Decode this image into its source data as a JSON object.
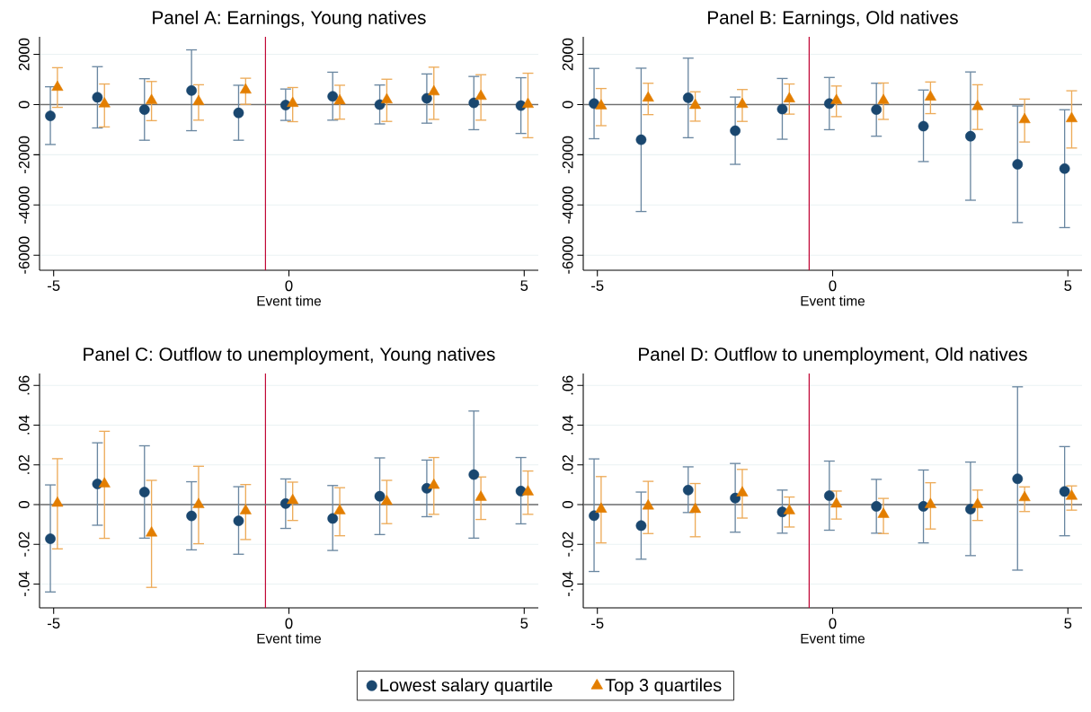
{
  "chart_data": [
    {
      "type": "scatter",
      "title": "Panel A: Earnings, Young natives",
      "xlabel": "Event time",
      "xlim": [
        -5.3,
        5.3
      ],
      "xticks": [
        -5,
        0,
        5
      ],
      "ylim": [
        -6600,
        2700
      ],
      "yticks": [
        -6000,
        -4000,
        -2000,
        0,
        2000
      ],
      "grid": "y",
      "ref_lines": [
        {
          "axis": "x",
          "value": -0.5,
          "color": "#c10534"
        },
        {
          "axis": "y",
          "value": 0,
          "color": "#6e6e6e"
        }
      ],
      "series": [
        {
          "color": "#1a476f",
          "marker": "circle",
          "x": [
            -5.07,
            -4.07,
            -3.07,
            -2.07,
            -1.07,
            -0.07,
            0.93,
            1.93,
            2.93,
            3.93,
            4.93
          ],
          "values": [
            -450,
            290,
            -200,
            560,
            -330,
            -20,
            330,
            0,
            250,
            70,
            -40
          ],
          "errors": [
            [
              -1590,
              710
            ],
            [
              -930,
              1510
            ],
            [
              -1420,
              1030
            ],
            [
              -1040,
              2180
            ],
            [
              -1420,
              770
            ],
            [
              -630,
              620
            ],
            [
              -620,
              1290
            ],
            [
              -770,
              780
            ],
            [
              -740,
              1220
            ],
            [
              -1000,
              1120
            ],
            [
              -1150,
              1070
            ]
          ]
        },
        {
          "color": "#e37e00",
          "marker": "triangle",
          "x": [
            -4.92,
            -3.92,
            -2.92,
            -1.92,
            -0.92,
            0.08,
            1.08,
            2.08,
            3.08,
            4.08,
            5.08
          ],
          "values": [
            690,
            30,
            160,
            120,
            580,
            50,
            150,
            190,
            510,
            330,
            10
          ],
          "errors": [
            [
              -110,
              1470
            ],
            [
              -890,
              820
            ],
            [
              -640,
              920
            ],
            [
              -620,
              790
            ],
            [
              10,
              1050
            ],
            [
              -680,
              680
            ],
            [
              -580,
              770
            ],
            [
              -670,
              1010
            ],
            [
              -590,
              1490
            ],
            [
              -620,
              1190
            ],
            [
              -1320,
              1250
            ]
          ]
        }
      ]
    },
    {
      "type": "scatter",
      "title": "Panel B: Earnings, Old natives",
      "xlabel": "Event time",
      "xlim": [
        -5.3,
        5.3
      ],
      "xticks": [
        -5,
        0,
        5
      ],
      "ylim": [
        -6600,
        2700
      ],
      "yticks": [
        -6000,
        -4000,
        -2000,
        0,
        2000
      ],
      "grid": "y",
      "ref_lines": [
        {
          "axis": "x",
          "value": -0.5,
          "color": "#c10534"
        },
        {
          "axis": "y",
          "value": 0,
          "color": "#6e6e6e"
        }
      ],
      "series": [
        {
          "color": "#1a476f",
          "marker": "circle",
          "x": [
            -5.07,
            -4.07,
            -3.07,
            -2.07,
            -1.07,
            -0.07,
            0.93,
            1.93,
            2.93,
            3.93,
            4.93
          ],
          "values": [
            40,
            -1400,
            270,
            -1040,
            -180,
            40,
            -200,
            -860,
            -1260,
            -2380,
            -2550
          ],
          "errors": [
            [
              -1360,
              1440
            ],
            [
              -4260,
              1450
            ],
            [
              -1320,
              1850
            ],
            [
              -2380,
              300
            ],
            [
              -1380,
              1040
            ],
            [
              -1000,
              1080
            ],
            [
              -1260,
              850
            ],
            [
              -2270,
              580
            ],
            [
              -3810,
              1300
            ],
            [
              -4700,
              -55
            ],
            [
              -4900,
              -205
            ]
          ]
        },
        {
          "color": "#e37e00",
          "marker": "triangle",
          "x": [
            -4.92,
            -3.92,
            -2.92,
            -1.92,
            -0.92,
            0.08,
            1.08,
            2.08,
            3.08,
            4.08,
            5.08
          ],
          "values": [
            -50,
            260,
            -30,
            10,
            230,
            160,
            160,
            300,
            -80,
            -600,
            -560
          ],
          "errors": [
            [
              -840,
              640
            ],
            [
              -400,
              850
            ],
            [
              -660,
              510
            ],
            [
              -670,
              600
            ],
            [
              -380,
              820
            ],
            [
              -480,
              740
            ],
            [
              -590,
              860
            ],
            [
              -360,
              900
            ],
            [
              -990,
              790
            ],
            [
              -1490,
              220
            ],
            [
              -1730,
              550
            ]
          ]
        }
      ]
    },
    {
      "type": "scatter",
      "title": "Panel C: Outflow to unemployment, Young natives",
      "xlabel": "Event time",
      "xlim": [
        -5.3,
        5.3
      ],
      "xticks": [
        -5,
        0,
        5
      ],
      "ylim": [
        -0.052,
        0.066
      ],
      "yticks": [
        {
          "value": -0.04,
          "label": "-.04"
        },
        {
          "value": -0.02,
          "label": "-.02"
        },
        0,
        {
          "value": 0.02,
          "label": ".02"
        },
        {
          "value": 0.04,
          "label": ".04"
        },
        {
          "value": 0.06,
          "label": ".06"
        }
      ],
      "grid": "y",
      "legend": "bottom",
      "ref_lines": [
        {
          "axis": "x",
          "value": -0.5,
          "color": "#c10534"
        },
        {
          "axis": "y",
          "value": 0,
          "color": "#6e6e6e"
        }
      ],
      "series": [
        {
          "name": "Lowest salary quartile",
          "color": "#1a476f",
          "marker": "circle",
          "x": [
            -5.07,
            -4.07,
            -3.07,
            -2.07,
            -1.07,
            -0.07,
            0.93,
            1.93,
            2.93,
            3.93,
            4.93
          ],
          "values": [
            -0.0172,
            0.0104,
            0.0063,
            -0.0057,
            -0.0082,
            0.0005,
            -0.007,
            0.0042,
            0.0082,
            0.0151,
            0.0068
          ],
          "errors": [
            [
              -0.044,
              0.0099
            ],
            [
              -0.0104,
              0.0311
            ],
            [
              -0.0169,
              0.0296
            ],
            [
              -0.0228,
              0.0115
            ],
            [
              -0.025,
              0.009
            ],
            [
              -0.012,
              0.0129
            ],
            [
              -0.0231,
              0.0096
            ],
            [
              -0.0151,
              0.0235
            ],
            [
              -0.0061,
              0.0224
            ],
            [
              -0.0169,
              0.0471
            ],
            [
              -0.0097,
              0.0237
            ]
          ]
        },
        {
          "name": "Top 3 quartiles",
          "color": "#e37e00",
          "marker": "triangle",
          "x": [
            -4.92,
            -3.92,
            -2.92,
            -1.92,
            -0.92,
            0.08,
            1.08,
            2.08,
            3.08,
            4.08,
            5.08
          ],
          "values": [
            0.0007,
            0.0104,
            -0.0143,
            0,
            -0.0031,
            0.0021,
            -0.0031,
            0.0016,
            0.0097,
            0.0037,
            0.0064
          ],
          "errors": [
            [
              -0.0223,
              0.0231
            ],
            [
              -0.017,
              0.0369
            ],
            [
              -0.0417,
              0.0122
            ],
            [
              -0.0197,
              0.0193
            ],
            [
              -0.0176,
              0.0101
            ],
            [
              -0.008,
              0.0113
            ],
            [
              -0.0157,
              0.0085
            ],
            [
              -0.0096,
              0.0122
            ],
            [
              -0.0049,
              0.0237
            ],
            [
              -0.0075,
              0.0139
            ],
            [
              -0.0049,
              0.0169
            ]
          ]
        }
      ]
    },
    {
      "type": "scatter",
      "title": "Panel D: Outflow to unemployment, Old natives",
      "xlabel": "Event time",
      "xlim": [
        -5.3,
        5.3
      ],
      "xticks": [
        -5,
        0,
        5
      ],
      "ylim": [
        -0.052,
        0.066
      ],
      "yticks": [
        {
          "value": -0.04,
          "label": "-.04"
        },
        {
          "value": -0.02,
          "label": "-.02"
        },
        0,
        {
          "value": 0.02,
          "label": ".02"
        },
        {
          "value": 0.04,
          "label": ".04"
        },
        {
          "value": 0.06,
          "label": ".06"
        }
      ],
      "grid": "y",
      "ref_lines": [
        {
          "axis": "x",
          "value": -0.5,
          "color": "#c10534"
        },
        {
          "axis": "y",
          "value": 0,
          "color": "#6e6e6e"
        }
      ],
      "series": [
        {
          "color": "#1a476f",
          "marker": "circle",
          "x": [
            -5.07,
            -4.07,
            -3.07,
            -2.07,
            -1.07,
            -0.07,
            0.93,
            1.93,
            2.93,
            3.93,
            4.93
          ],
          "values": [
            -0.0056,
            -0.0106,
            0.0073,
            0.0033,
            -0.0037,
            0.0045,
            -0.0009,
            -0.0009,
            -0.0023,
            0.013,
            0.0066
          ],
          "errors": [
            [
              -0.0337,
              0.023
            ],
            [
              -0.0275,
              0.0063
            ],
            [
              -0.004,
              0.019
            ],
            [
              -0.0139,
              0.0207
            ],
            [
              -0.0144,
              0.0073
            ],
            [
              -0.0129,
              0.0219
            ],
            [
              -0.0144,
              0.0127
            ],
            [
              -0.0193,
              0.0174
            ],
            [
              -0.0257,
              0.0214
            ],
            [
              -0.033,
              0.0593
            ],
            [
              -0.0157,
              0.0292
            ]
          ]
        },
        {
          "color": "#e37e00",
          "marker": "triangle",
          "x": [
            -4.92,
            -3.92,
            -2.92,
            -1.92,
            -0.92,
            0.08,
            1.08,
            2.08,
            3.08,
            4.08,
            5.08
          ],
          "values": [
            -0.0023,
            -0.0007,
            -0.0024,
            0.0059,
            -0.0031,
            0.0003,
            -0.0049,
            0,
            0,
            0.0035,
            0.0042
          ],
          "errors": [
            [
              -0.0193,
              0.0141
            ],
            [
              -0.0146,
              0.0117
            ],
            [
              -0.0162,
              0.0106
            ],
            [
              -0.0068,
              0.0177
            ],
            [
              -0.0113,
              0.0038
            ],
            [
              -0.0073,
              0.0068
            ],
            [
              -0.0146,
              0.0031
            ],
            [
              -0.0123,
              0.011
            ],
            [
              -0.008,
              0.0073
            ],
            [
              -0.0035,
              0.0089
            ],
            [
              -0.0028,
              0.0094
            ]
          ]
        }
      ]
    }
  ]
}
